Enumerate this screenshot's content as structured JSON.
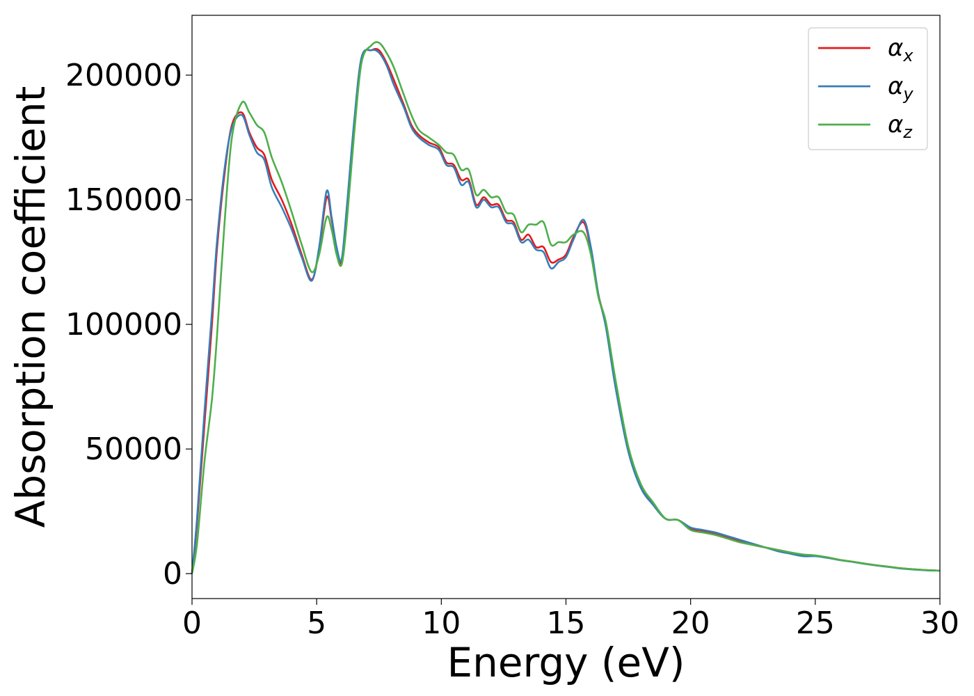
{
  "chart_data": {
    "type": "line",
    "xlabel": "Energy (eV)",
    "ylabel": "Absorption coefficient",
    "xlim": [
      0,
      30
    ],
    "ylim": [
      -10000,
      224000
    ],
    "x_ticks": [
      0,
      5,
      10,
      15,
      20,
      25,
      30
    ],
    "x_tick_labels": [
      "0",
      "5",
      "10",
      "15",
      "20",
      "25",
      "30"
    ],
    "y_ticks": [
      0,
      50000,
      100000,
      150000,
      200000
    ],
    "y_tick_labels": [
      "0",
      "50000",
      "100000",
      "150000",
      "200000"
    ],
    "grid": false,
    "legend_position": "top-right",
    "colors": {
      "alpha_x": "#e41a1c",
      "alpha_y": "#377eb8",
      "alpha_z": "#4daf4a"
    },
    "legend": [
      {
        "symbol": "α",
        "subscript": "x"
      },
      {
        "symbol": "α",
        "subscript": "y"
      },
      {
        "symbol": "α",
        "subscript": "z"
      }
    ],
    "series": [
      {
        "key": "alpha_x",
        "x": [
          0,
          0.2,
          0.5,
          0.8,
          1.0,
          1.3,
          1.6,
          2.0,
          2.3,
          2.6,
          2.9,
          3.2,
          3.6,
          4.0,
          4.4,
          4.8,
          5.1,
          5.4,
          5.6,
          5.8,
          6.0,
          6.2,
          6.5,
          6.8,
          7.2,
          7.5,
          7.8,
          8.1,
          8.5,
          8.8,
          9.1,
          9.5,
          9.9,
          10.2,
          10.5,
          10.8,
          11.1,
          11.4,
          11.7,
          12.0,
          12.3,
          12.6,
          12.9,
          13.2,
          13.5,
          13.8,
          14.1,
          14.4,
          14.7,
          15.0,
          15.3,
          15.7,
          16.0,
          16.3,
          16.6,
          17.0,
          17.5,
          18.0,
          18.5,
          19.0,
          19.5,
          20.0,
          20.5,
          21.0,
          21.5,
          22.0,
          22.5,
          23.0,
          23.5,
          24.0,
          24.5,
          25.0,
          25.5,
          26.0,
          26.5,
          27.0,
          27.5,
          28.0,
          28.5,
          29.0,
          29.5,
          30.0
        ],
        "y": [
          0,
          20000,
          60000,
          100000,
          130000,
          160000,
          180000,
          185000,
          177000,
          171000,
          168000,
          158000,
          150000,
          140000,
          128000,
          118000,
          130000,
          151000,
          142000,
          130000,
          125000,
          145000,
          180000,
          207000,
          210000,
          210000,
          205000,
          198000,
          188000,
          180000,
          176000,
          173000,
          171000,
          165000,
          164000,
          158000,
          158000,
          148000,
          151000,
          148000,
          148000,
          142000,
          141000,
          134000,
          136000,
          131000,
          131000,
          125000,
          126000,
          128000,
          135000,
          141000,
          130000,
          112000,
          100000,
          75000,
          50000,
          35000,
          28000,
          22000,
          21500,
          18000,
          17000,
          16000,
          14500,
          13000,
          11500,
          10500,
          9500,
          8500,
          7500,
          7200,
          6500,
          5500,
          4800,
          4000,
          3300,
          2700,
          2100,
          1700,
          1400,
          1200
        ]
      },
      {
        "key": "alpha_y",
        "x": [
          0,
          0.2,
          0.5,
          0.8,
          1.0,
          1.3,
          1.6,
          2.0,
          2.3,
          2.6,
          2.9,
          3.2,
          3.6,
          4.0,
          4.4,
          4.8,
          5.1,
          5.4,
          5.6,
          5.8,
          6.0,
          6.2,
          6.5,
          6.8,
          7.2,
          7.5,
          7.8,
          8.1,
          8.5,
          8.8,
          9.1,
          9.5,
          9.9,
          10.2,
          10.5,
          10.8,
          11.1,
          11.4,
          11.7,
          12.0,
          12.3,
          12.6,
          12.9,
          13.2,
          13.5,
          13.8,
          14.1,
          14.4,
          14.7,
          15.0,
          15.3,
          15.7,
          16.0,
          16.3,
          16.6,
          17.0,
          17.5,
          18.0,
          18.5,
          19.0,
          19.5,
          20.0,
          20.5,
          21.0,
          21.5,
          22.0,
          22.5,
          23.0,
          23.5,
          24.0,
          24.5,
          25.0,
          25.5,
          26.0,
          26.5,
          27.0,
          27.5,
          28.0,
          28.5,
          29.0,
          29.5,
          30.0
        ],
        "y": [
          0,
          22000,
          65000,
          105000,
          133000,
          162000,
          179000,
          184000,
          176000,
          169000,
          166000,
          155000,
          147000,
          138000,
          127000,
          117500,
          131000,
          153500,
          143000,
          131000,
          126000,
          146000,
          181000,
          207000,
          210000,
          209000,
          204000,
          196000,
          187000,
          179000,
          175000,
          172000,
          170000,
          164000,
          163000,
          156000,
          157000,
          147000,
          150000,
          147000,
          147000,
          141000,
          140000,
          133000,
          134000,
          130000,
          129000,
          122500,
          125000,
          127000,
          134000,
          142000,
          131000,
          112000,
          99000,
          74000,
          49000,
          34500,
          27500,
          22000,
          21500,
          18500,
          17500,
          16500,
          15000,
          13500,
          12000,
          10500,
          9000,
          8000,
          7000,
          7000,
          6300,
          5400,
          4700,
          3900,
          3200,
          2600,
          2000,
          1600,
          1300,
          1200
        ]
      },
      {
        "key": "alpha_z",
        "x": [
          0,
          0.2,
          0.5,
          0.8,
          1.0,
          1.3,
          1.6,
          2.0,
          2.3,
          2.6,
          2.9,
          3.2,
          3.6,
          4.0,
          4.4,
          4.8,
          5.1,
          5.4,
          5.6,
          5.8,
          6.0,
          6.2,
          6.5,
          6.8,
          7.2,
          7.5,
          7.8,
          8.1,
          8.5,
          8.8,
          9.1,
          9.5,
          9.9,
          10.2,
          10.5,
          10.8,
          11.1,
          11.4,
          11.7,
          12.0,
          12.3,
          12.6,
          12.9,
          13.2,
          13.5,
          13.8,
          14.1,
          14.4,
          14.7,
          15.0,
          15.3,
          15.7,
          16.0,
          16.3,
          16.6,
          17.0,
          17.5,
          18.0,
          18.5,
          19.0,
          19.5,
          20.0,
          20.5,
          21.0,
          21.5,
          22.0,
          22.5,
          23.0,
          23.5,
          24.0,
          24.5,
          25.0,
          25.5,
          26.0,
          26.5,
          27.0,
          27.5,
          28.0,
          28.5,
          29.0,
          29.5,
          30.0
        ],
        "y": [
          0,
          12000,
          45000,
          70000,
          95000,
          140000,
          175000,
          189000,
          185000,
          180000,
          177000,
          167000,
          157000,
          145000,
          132000,
          121000,
          128000,
          143000,
          138000,
          128000,
          124000,
          140000,
          176000,
          205000,
          212000,
          213000,
          209000,
          203000,
          192000,
          184000,
          178000,
          175000,
          172000,
          169000,
          168000,
          162000,
          162000,
          152000,
          154000,
          151000,
          151000,
          145000,
          144000,
          137000,
          140000,
          140000,
          141000,
          132000,
          133000,
          133000,
          136000,
          137000,
          128000,
          111000,
          101000,
          77000,
          51000,
          36000,
          28500,
          22000,
          21500,
          17500,
          16500,
          15500,
          14000,
          12500,
          11500,
          10500,
          9500,
          8500,
          7700,
          7300,
          6500,
          5500,
          4800,
          4000,
          3300,
          2700,
          2100,
          1700,
          1400,
          1200
        ]
      }
    ]
  }
}
